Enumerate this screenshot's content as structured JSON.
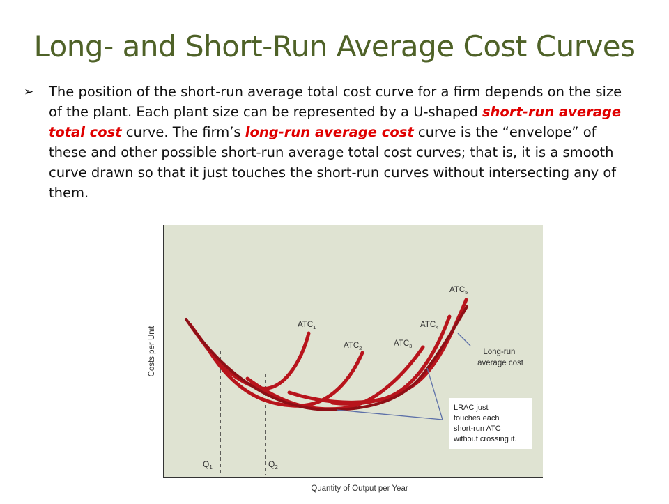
{
  "slide": {
    "title": "Long- and Short-Run Average Cost Curves",
    "bullet_marker": "➢",
    "bullet": {
      "t1": "The position of the short-run average total cost curve for a firm depends on the size of the plant. Each plant size can be represented by a U-shaped ",
      "h1": "short-run average total cost",
      "t2": " curve. The firm’s ",
      "h2": "long-run average cost",
      "t3": " curve is the “envelope” of these and other possible short-run average total cost curves; that is, it is a smooth curve drawn so that it just touches the short-run curves without intersecting any of them."
    }
  },
  "figure": {
    "y_axis_label": "Costs per Unit",
    "x_axis_label": "Quantity of Output per Year",
    "curves": [
      {
        "base": "ATC",
        "sub": "1"
      },
      {
        "base": "ATC",
        "sub": "2"
      },
      {
        "base": "ATC",
        "sub": "3"
      },
      {
        "base": "ATC",
        "sub": "4"
      },
      {
        "base": "ATC",
        "sub": "5"
      }
    ],
    "q_labels": [
      {
        "base": "Q",
        "sub": "1"
      },
      {
        "base": "Q",
        "sub": "2"
      }
    ],
    "lrac_label": [
      "Long-run",
      "average cost"
    ],
    "callout": [
      "LRAC just",
      "touches each",
      "short-run ATC",
      "without crossing it."
    ],
    "colors": {
      "panel": "#dfe3d2",
      "curve": "#b8141c",
      "axis": "#333333",
      "leader": "#5b6fa8",
      "callout_bg": "#ffffff"
    }
  }
}
